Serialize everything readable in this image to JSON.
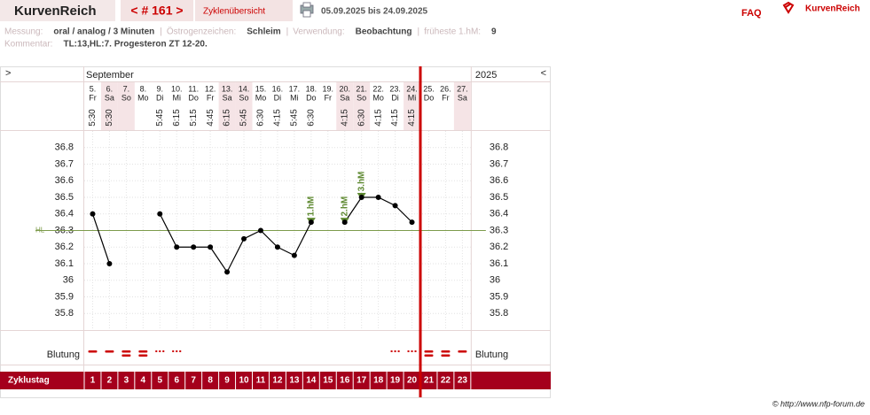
{
  "header": {
    "logo": "KurvenReich",
    "cycle_nav": "< # 161 >",
    "overview": "Zyklenübersicht",
    "period": "05.09.2025 bis 24.09.2025",
    "faq": "FAQ",
    "brand": "KurvenReich"
  },
  "info": {
    "separator": "|",
    "fields": [
      {
        "label": "Messung:",
        "value": "oral / analog / 3 Minuten"
      },
      {
        "label": "Östrogenzeichen:",
        "value": "Schleim"
      },
      {
        "label": "Verwendung:",
        "value": "Beobachtung"
      },
      {
        "label": "früheste 1.hM:",
        "value": "9"
      }
    ],
    "comment_label": "Kommentar:",
    "comment": "TL:13,HL:7. Progesteron ZT 12-20."
  },
  "footer": "© http://www.nfp-forum.de",
  "chart_data": {
    "type": "line",
    "nav_prev": ">",
    "nav_next": "<",
    "month": "September",
    "year": "2025",
    "dates": [
      "5.",
      "6.",
      "7.",
      "8.",
      "9.",
      "10.",
      "11.",
      "12.",
      "13.",
      "14.",
      "15.",
      "16.",
      "17.",
      "18.",
      "19.",
      "20.",
      "21.",
      "22.",
      "23.",
      "24.",
      "25.",
      "26.",
      "27."
    ],
    "weekdays": [
      "Fr",
      "Sa",
      "So",
      "Mo",
      "Di",
      "Mi",
      "Do",
      "Fr",
      "Sa",
      "So",
      "Mo",
      "Di",
      "Mi",
      "Do",
      "Fr",
      "Sa",
      "So",
      "Mo",
      "Di",
      "Mi",
      "Do",
      "Fr",
      "Sa"
    ],
    "times": [
      "5:30",
      "5:30",
      null,
      null,
      "5:45",
      "6:15",
      "5:15",
      "4:45",
      "6:15",
      "5:45",
      "6:30",
      "4:15",
      "5:45",
      "6:30",
      null,
      "4:15",
      "6:30",
      "4:15",
      "4:15",
      "4:15",
      null,
      null,
      null
    ],
    "values": [
      36.4,
      36.1,
      null,
      null,
      36.4,
      36.2,
      36.2,
      36.2,
      36.05,
      36.25,
      36.3,
      36.2,
      36.15,
      36.35,
      null,
      36.35,
      36.5,
      36.5,
      36.45,
      36.35,
      null,
      null,
      null
    ],
    "peak_labels": [
      null,
      null,
      null,
      null,
      null,
      null,
      null,
      null,
      null,
      null,
      null,
      null,
      null,
      "1.hM",
      null,
      "2.hM",
      "3.hM",
      null,
      null,
      null,
      null,
      null,
      null
    ],
    "ylim": [
      35.7,
      36.9
    ],
    "yticks": [
      35.8,
      35.9,
      36,
      36.1,
      36.2,
      36.3,
      36.4,
      36.5,
      36.6,
      36.7,
      36.8
    ],
    "hl_label": "HL",
    "hl_value": 36.3,
    "color": "#000000",
    "hl_color": "#7d9b4b",
    "peak_color": "#5f8a32",
    "bleeding_label": "Blutung",
    "bleeding": [
      "single",
      "single",
      "double",
      "double",
      "dots",
      "dots",
      null,
      null,
      null,
      null,
      null,
      null,
      null,
      null,
      null,
      null,
      null,
      null,
      "dots",
      "dots",
      "double",
      "double",
      "single"
    ],
    "bleeding_color": "#cc0000",
    "cycle_day_label": "Zyklustag",
    "cycle_days": [
      1,
      2,
      3,
      4,
      5,
      6,
      7,
      8,
      9,
      10,
      11,
      12,
      13,
      14,
      15,
      16,
      17,
      18,
      19,
      20,
      21,
      22,
      23
    ],
    "today_index": 19,
    "today_color": "#cc0000",
    "grid": true
  }
}
